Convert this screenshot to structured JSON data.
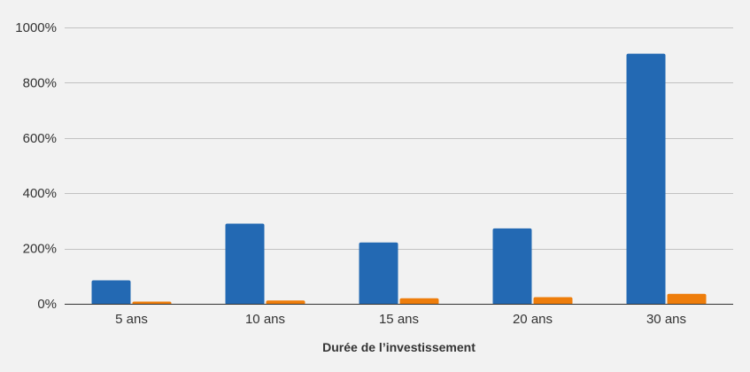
{
  "chart_data": {
    "type": "bar",
    "title": "",
    "xlabel": "Durée de l’investissement",
    "ylabel": "",
    "categories": [
      "5 ans",
      "10 ans",
      "15 ans",
      "20 ans",
      "30 ans"
    ],
    "series": [
      {
        "values": [
          85,
          290,
          222,
          273,
          905
        ],
        "color": "#2369b3"
      },
      {
        "values": [
          8,
          12,
          20,
          24,
          36
        ],
        "color": "#ee7d0b"
      }
    ],
    "ylim": [
      0,
      1000
    ],
    "yticks": [
      0,
      200,
      400,
      600,
      800,
      1000
    ],
    "ytick_labels": [
      "0%",
      "200%",
      "400%",
      "600%",
      "800%",
      "1000%"
    ],
    "grid": true,
    "legend": "none",
    "colors": {
      "background": "#f2f2f2",
      "grid": "#c2c2c2",
      "axis": "#333333",
      "text": "#333333"
    }
  }
}
